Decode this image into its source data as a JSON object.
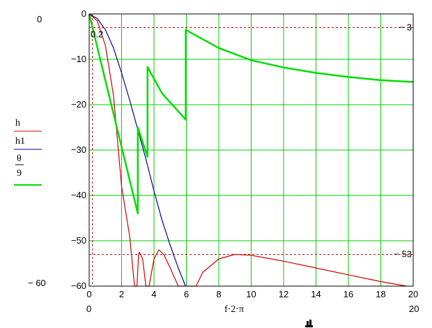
{
  "chart_data": {
    "type": "line",
    "xlabel": "f·2·π",
    "x_range_labels": {
      "min": "0",
      "max": "20"
    },
    "y_range_labels": {
      "max": "0",
      "min": "− 60"
    },
    "xlim": [
      0,
      20
    ],
    "ylim": [
      -60,
      0
    ],
    "x_ticks": [
      "0",
      "2",
      "4",
      "6",
      "8",
      "10",
      "12",
      "14",
      "16",
      "18",
      "20"
    ],
    "y_ticks": [
      "0",
      "−10",
      "−20",
      "−30",
      "−40",
      "−50",
      "−60"
    ],
    "x_marker": {
      "value": 0.2,
      "label": "0.2"
    },
    "reference_lines": [
      {
        "value": -3,
        "label": "− 3"
      },
      {
        "value": -53,
        "label": "− 53"
      }
    ],
    "grid": true,
    "legend_position": "left",
    "series": [
      {
        "name": "h",
        "color": "#cc0000",
        "x": [
          0,
          0.5,
          1,
          1.5,
          2,
          2.5,
          2.8,
          2.95,
          3.05,
          3.1,
          3.3,
          3.5,
          3.7,
          4.0,
          4.3,
          4.6,
          5.0,
          5.5,
          5.9,
          6.3,
          6.6,
          7,
          8,
          9,
          10,
          12,
          14,
          16,
          18,
          19.6
        ],
        "y": [
          0,
          -1.5,
          -7,
          -18,
          -38,
          -49,
          -60,
          -60,
          -53,
          -52.5,
          -54,
          -60,
          -60,
          -54,
          -52,
          -53,
          -56,
          -60,
          -60,
          -60,
          -60,
          -57,
          -54,
          -53,
          -53.2,
          -54.5,
          -56,
          -57.5,
          -59,
          -60
        ]
      },
      {
        "name": "h1",
        "color": "#000099",
        "x": [
          0,
          0.5,
          1,
          1.5,
          2,
          2.5,
          3,
          3.5,
          4,
          4.5,
          5,
          5.5,
          5.95
        ],
        "y": [
          0,
          -1,
          -3.5,
          -7.5,
          -13,
          -19,
          -25.5,
          -32,
          -39,
          -45.5,
          -51,
          -56,
          -60
        ]
      },
      {
        "name": "θ/9",
        "color": "#00dd00",
        "x": [
          0,
          1,
          2,
          3,
          3,
          3.6,
          3.6,
          4.5,
          5.96,
          5.96,
          8,
          10,
          12,
          14,
          16,
          18,
          20
        ],
        "y": [
          0,
          -14.7,
          -29.3,
          -44,
          -25,
          -31.5,
          -11.7,
          -17.5,
          -23.3,
          -3.5,
          -7.5,
          -10.2,
          -11.8,
          -13,
          -13.9,
          -14.6,
          -15
        ]
      }
    ]
  },
  "legend": [
    {
      "label": "h",
      "color": "#cc0000"
    },
    {
      "label": "h1",
      "color": "#000099"
    },
    {
      "label_num": "θ",
      "label_den": "9",
      "color": "#00dd00"
    }
  ]
}
